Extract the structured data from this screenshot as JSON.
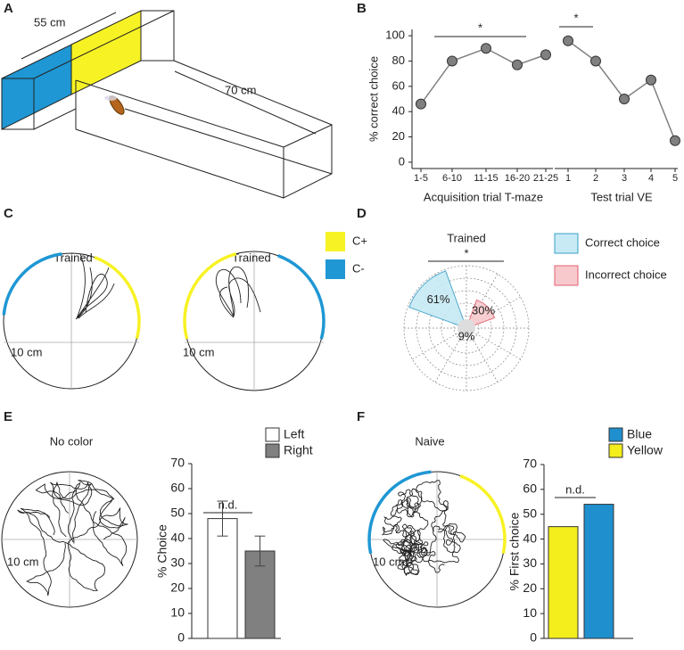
{
  "panel_labels": [
    "A",
    "B",
    "C",
    "D",
    "E",
    "F"
  ],
  "maze": {
    "width_label": "55 cm",
    "length_label": "70 cm"
  },
  "trajectories": [
    {
      "title": "Trained",
      "scale_label": "10 cm"
    },
    {
      "title": "Trained",
      "scale_label": "10 cm"
    },
    {
      "title": "No color",
      "scale_label": "10 cm"
    },
    {
      "title": "Naive",
      "scale_label": "10 cm"
    }
  ],
  "color_legend": [
    {
      "name": "C+",
      "color": "#f7f224"
    },
    {
      "name": "C-",
      "color": "#1f97d4"
    }
  ],
  "chart_data": [
    {
      "type": "line",
      "xlabel": "Acquisition trial T-maze",
      "ylabel": "% correct choice",
      "annotation": "*",
      "color": "#808080",
      "categories": [
        "1-5",
        "6-10",
        "11-15",
        "16-20",
        "21-25"
      ],
      "values": [
        46,
        80,
        90,
        77,
        85
      ],
      "ylim": [
        -5,
        105
      ],
      "yticks": [
        0,
        20,
        40,
        60,
        80,
        100
      ]
    },
    {
      "type": "line",
      "xlabel": "Test trial VE",
      "annotation": "*",
      "color": "#808080",
      "categories": [
        "1",
        "2",
        "3",
        "4",
        "5"
      ],
      "values": [
        96,
        80,
        50,
        65,
        17
      ],
      "ylim": [
        -5,
        105
      ]
    },
    {
      "type": "polar",
      "title": "Trained",
      "annotation": "*",
      "series": [
        {
          "name": "Correct choice",
          "color": "#c7eaf5",
          "values": [
            61
          ],
          "value_labels": [
            "61%"
          ]
        },
        {
          "name": "Incorrect choice",
          "color": "#f7c9cd",
          "values": [
            30
          ],
          "value_labels": [
            "30%"
          ]
        }
      ],
      "center": {
        "color": "#dddddd",
        "values": [
          9
        ],
        "value_labels": [
          "9%"
        ]
      }
    },
    {
      "type": "bar",
      "ylabel": "% Choice",
      "annotation": "n.d.",
      "series": [
        {
          "name": "Left",
          "color": "#ffffff",
          "values": [
            48
          ],
          "errors": [
            7
          ]
        },
        {
          "name": "Right",
          "color": "#808080",
          "values": [
            35
          ],
          "errors": [
            6
          ]
        }
      ],
      "ylim": [
        0,
        70
      ],
      "yticks": [
        0,
        10,
        20,
        30,
        40,
        50,
        60,
        70
      ]
    },
    {
      "type": "bar",
      "ylabel": "% First choice",
      "annotation": "n.d.",
      "series": [
        {
          "name": "Blue",
          "color": "#1f8fce",
          "values": [
            54
          ]
        },
        {
          "name": "Yellow",
          "color": "#f3ee1c",
          "values": [
            45
          ]
        }
      ],
      "ylim": [
        0,
        70
      ],
      "yticks": [
        0,
        10,
        20,
        30,
        40,
        50,
        60,
        70
      ]
    }
  ]
}
